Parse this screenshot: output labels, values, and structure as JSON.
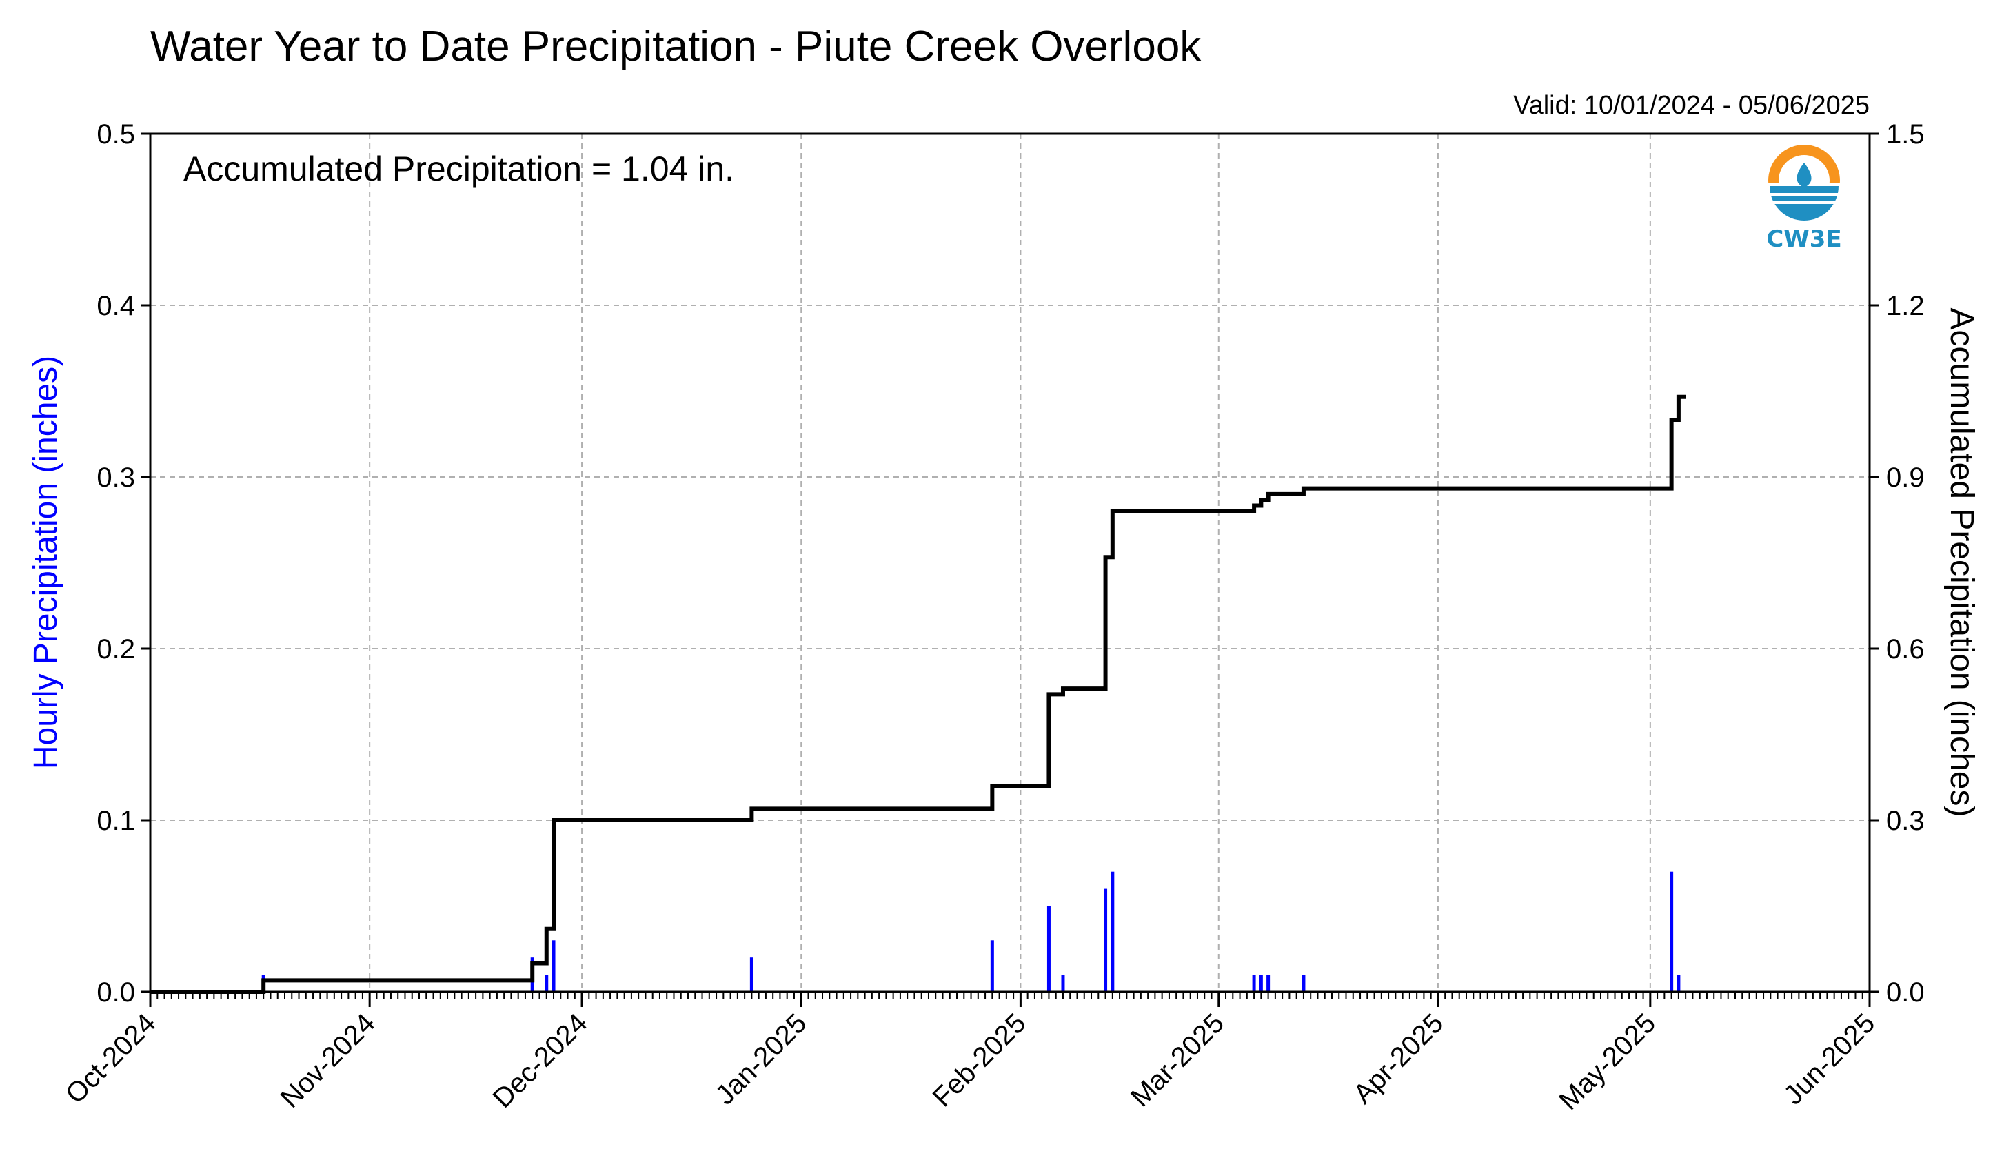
{
  "chart_data": {
    "type": "bar",
    "title": "Water Year to Date Precipitation - Piute Creek Overlook",
    "subtitle": "Valid: 10/01/2024 - 05/06/2025",
    "annotation": "Accumulated Precipitation = 1.04 in.",
    "logo_text": "CW3E",
    "ylabel_left": "Hourly Precipitation (inches)",
    "ylabel_right": "Accumulated Precipitation (inches)",
    "ylim_left": [
      0,
      0.5
    ],
    "ylim_right": [
      0,
      1.5
    ],
    "xlim": [
      "2024-10-01",
      "2025-06-01"
    ],
    "grid": true,
    "colors": {
      "hourly": "#0000ff",
      "accumulated": "#000000",
      "grid": "#b0b0b0"
    },
    "x_tick_labels": [
      {
        "date": "2024-10-01",
        "label": "Oct-2024"
      },
      {
        "date": "2024-11-01",
        "label": "Nov-2024"
      },
      {
        "date": "2024-12-01",
        "label": "Dec-2024"
      },
      {
        "date": "2025-01-01",
        "label": "Jan-2025"
      },
      {
        "date": "2025-02-01",
        "label": "Feb-2025"
      },
      {
        "date": "2025-03-01",
        "label": "Mar-2025"
      },
      {
        "date": "2025-04-01",
        "label": "Apr-2025"
      },
      {
        "date": "2025-05-01",
        "label": "May-2025"
      },
      {
        "date": "2025-06-01",
        "label": "Jun-2025"
      }
    ],
    "y_left_ticks": [
      {
        "value": 0.0,
        "label": "0.0"
      },
      {
        "value": 0.1,
        "label": "0.1"
      },
      {
        "value": 0.2,
        "label": "0.2"
      },
      {
        "value": 0.3,
        "label": "0.3"
      },
      {
        "value": 0.4,
        "label": "0.4"
      },
      {
        "value": 0.5,
        "label": "0.5"
      }
    ],
    "y_right_ticks": [
      {
        "value": 0.0,
        "label": "0.0"
      },
      {
        "value": 0.3,
        "label": "0.3"
      },
      {
        "value": 0.6,
        "label": "0.6"
      },
      {
        "value": 0.9,
        "label": "0.9"
      },
      {
        "value": 1.2,
        "label": "1.2"
      },
      {
        "value": 1.5,
        "label": "1.5"
      }
    ],
    "series": [
      {
        "type": "bar",
        "axis": "left",
        "points": [
          {
            "x": "2024-10-17",
            "y": 0.01
          },
          {
            "x": "2024-11-24",
            "y": 0.02
          },
          {
            "x": "2024-11-26",
            "y": 0.01
          },
          {
            "x": "2024-11-27",
            "y": 0.03
          },
          {
            "x": "2024-12-25",
            "y": 0.02
          },
          {
            "x": "2025-01-28",
            "y": 0.03
          },
          {
            "x": "2025-02-05",
            "y": 0.05
          },
          {
            "x": "2025-02-07",
            "y": 0.01
          },
          {
            "x": "2025-02-13",
            "y": 0.06
          },
          {
            "x": "2025-02-14",
            "y": 0.07
          },
          {
            "x": "2025-03-06",
            "y": 0.01
          },
          {
            "x": "2025-03-07",
            "y": 0.01
          },
          {
            "x": "2025-03-08",
            "y": 0.01
          },
          {
            "x": "2025-03-13",
            "y": 0.01
          },
          {
            "x": "2025-05-04",
            "y": 0.07
          },
          {
            "x": "2025-05-05",
            "y": 0.01
          }
        ]
      },
      {
        "type": "step",
        "axis": "right",
        "points": [
          {
            "x": "2024-10-01",
            "y": 0.0
          },
          {
            "x": "2024-10-17",
            "y": 0.02
          },
          {
            "x": "2024-11-24",
            "y": 0.05
          },
          {
            "x": "2024-11-26",
            "y": 0.11
          },
          {
            "x": "2024-11-27",
            "y": 0.3
          },
          {
            "x": "2024-12-25",
            "y": 0.32
          },
          {
            "x": "2025-01-28",
            "y": 0.36
          },
          {
            "x": "2025-02-05",
            "y": 0.52
          },
          {
            "x": "2025-02-07",
            "y": 0.53
          },
          {
            "x": "2025-02-13",
            "y": 0.76
          },
          {
            "x": "2025-02-14",
            "y": 0.84
          },
          {
            "x": "2025-03-06",
            "y": 0.85
          },
          {
            "x": "2025-03-07",
            "y": 0.86
          },
          {
            "x": "2025-03-08",
            "y": 0.87
          },
          {
            "x": "2025-03-13",
            "y": 0.88
          },
          {
            "x": "2025-05-04",
            "y": 1.0
          },
          {
            "x": "2025-05-05",
            "y": 1.04
          },
          {
            "x": "2025-05-06",
            "y": 1.04
          }
        ]
      }
    ]
  }
}
